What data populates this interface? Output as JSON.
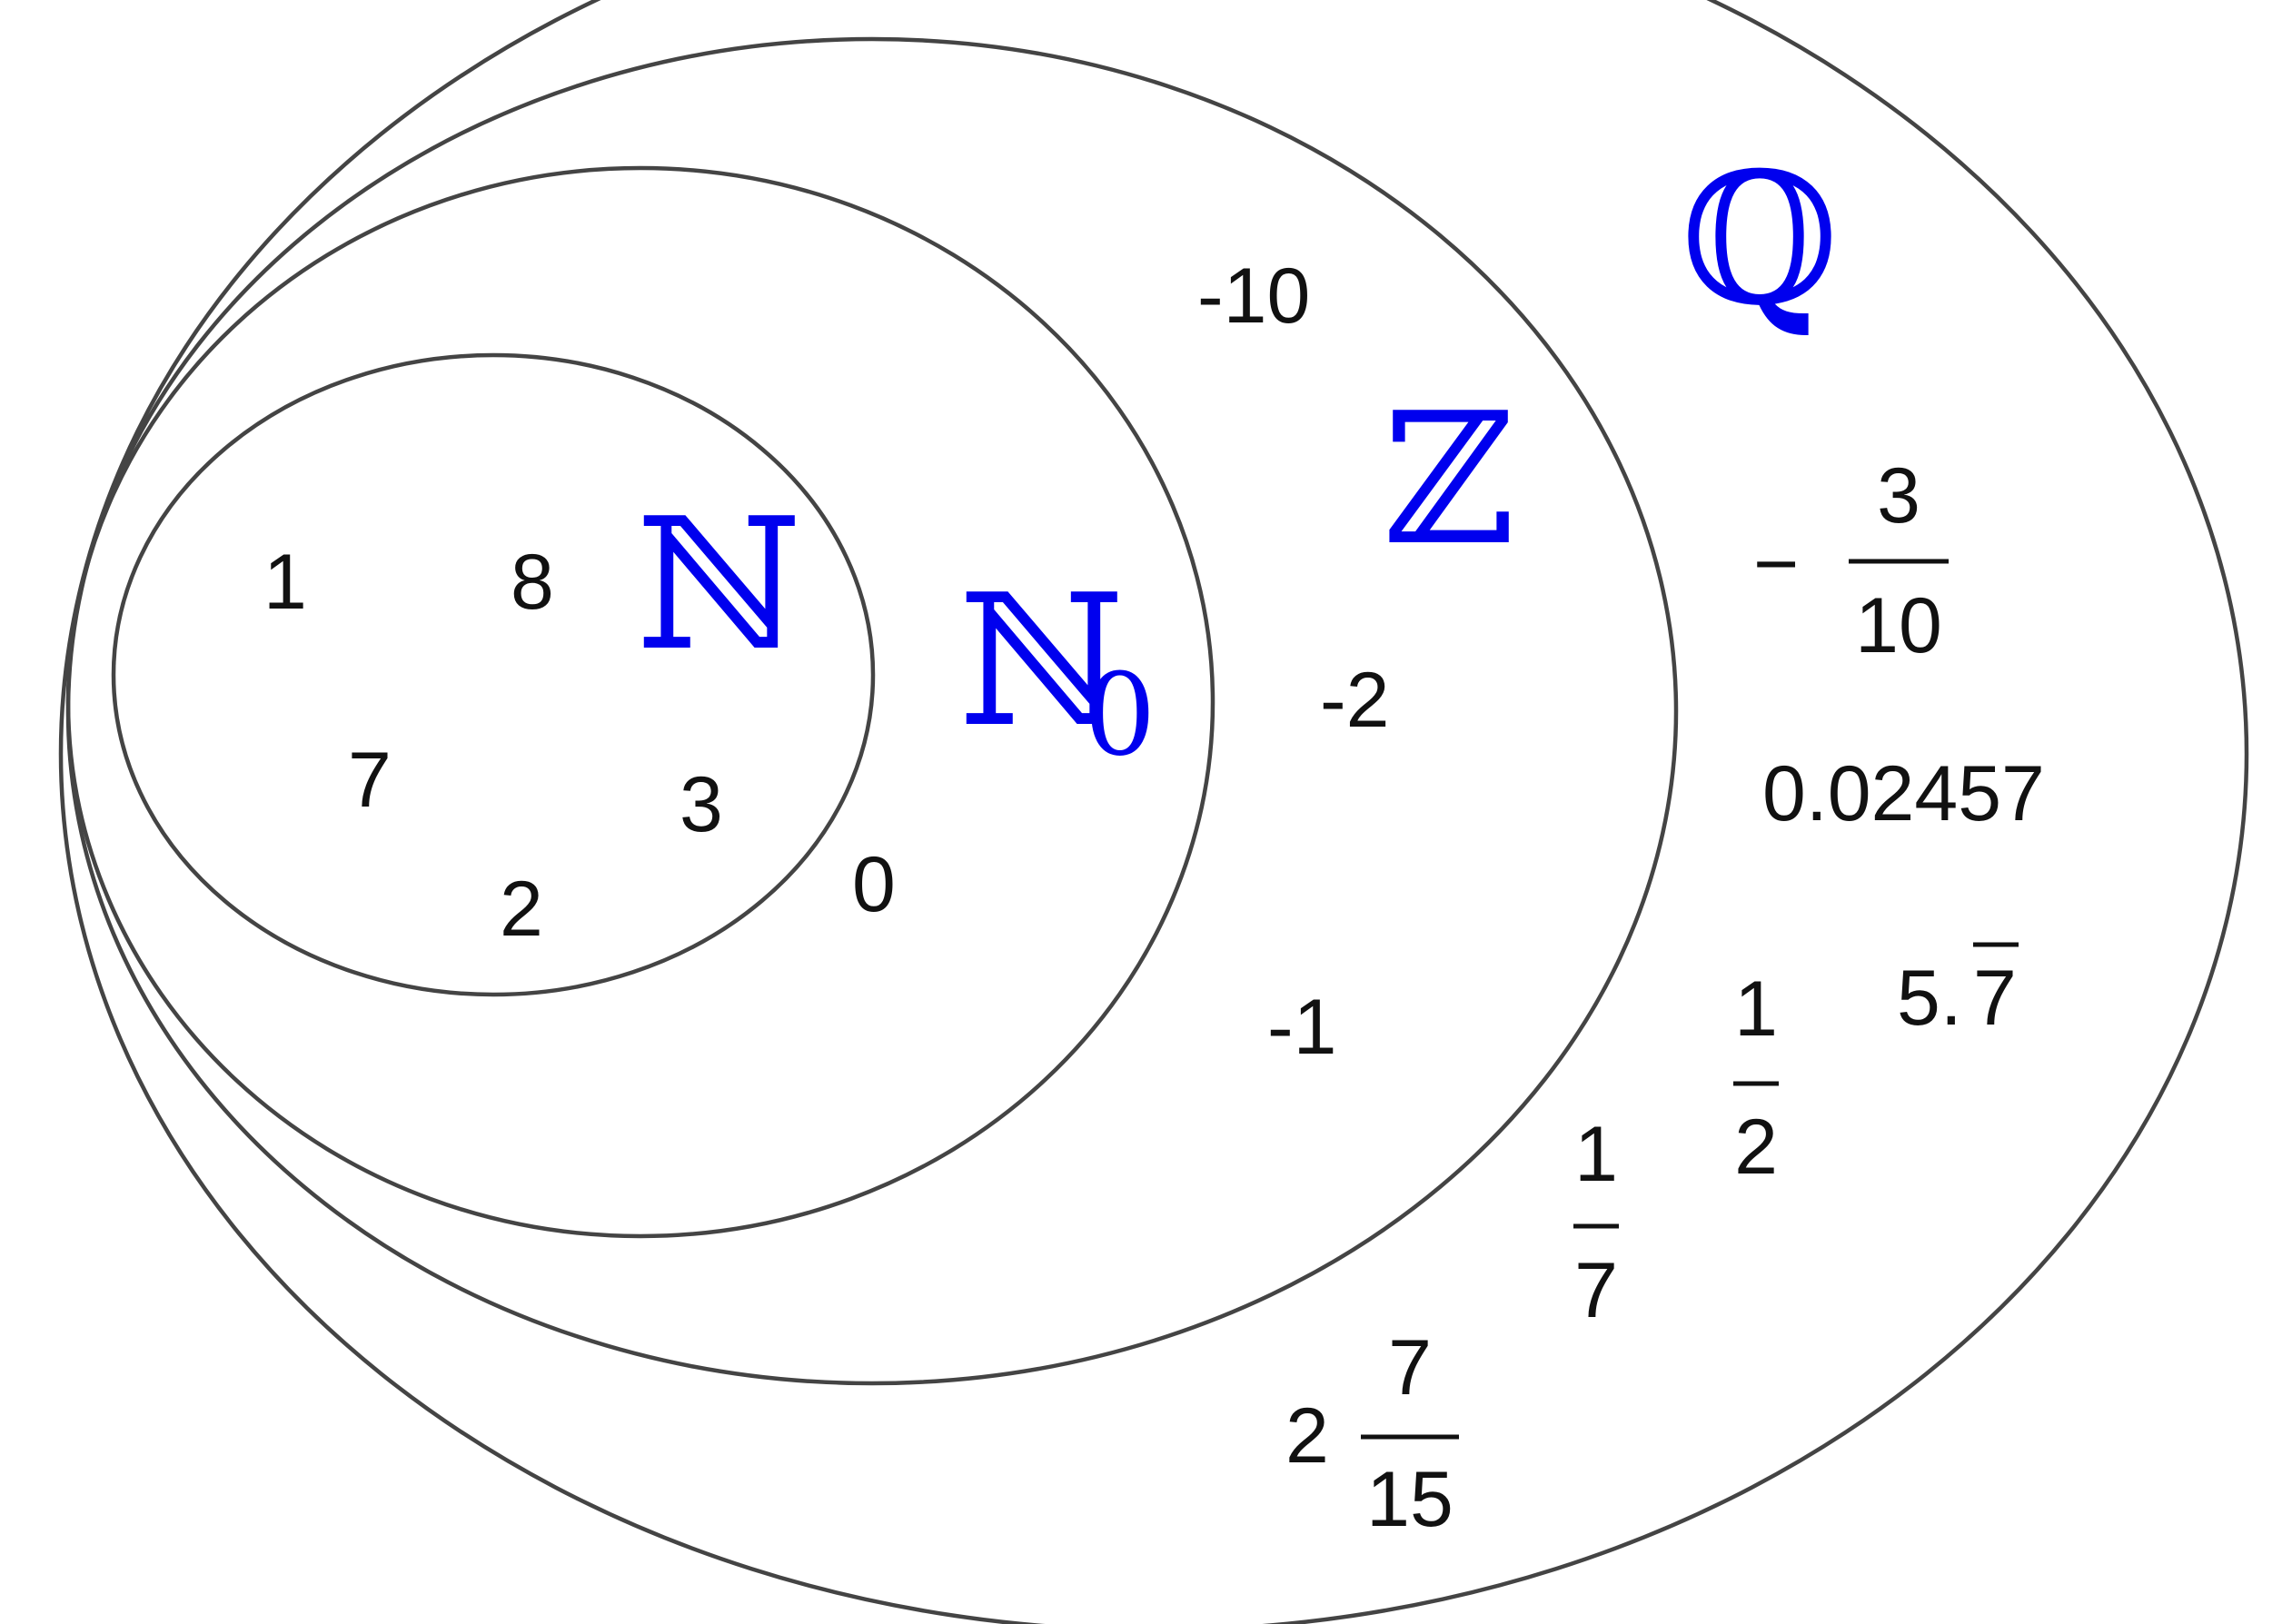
{
  "sets": {
    "N": {
      "symbol": "ℕ"
    },
    "N0": {
      "symbol": "ℕ",
      "subscript": "0"
    },
    "Z": {
      "symbol": "ℤ"
    },
    "Q": {
      "symbol": "ℚ"
    }
  },
  "label_color": "#0000ee",
  "outline_color": "#444444",
  "elements": {
    "n": [
      "1",
      "8",
      "7",
      "3",
      "2"
    ],
    "n0": [
      "0"
    ],
    "z": [
      "-10",
      "-2",
      "-1"
    ],
    "q": {
      "neg_fraction": {
        "sign": "−",
        "numerator": "3",
        "denominator": "10"
      },
      "decimal": "0.02457",
      "repeating": {
        "prefix": "5.",
        "digit": "7"
      },
      "half": {
        "numerator": "1",
        "denominator": "2"
      },
      "seventh": {
        "numerator": "1",
        "denominator": "7"
      },
      "mixed": {
        "whole": "2",
        "numerator": "7",
        "denominator": "15"
      }
    }
  }
}
